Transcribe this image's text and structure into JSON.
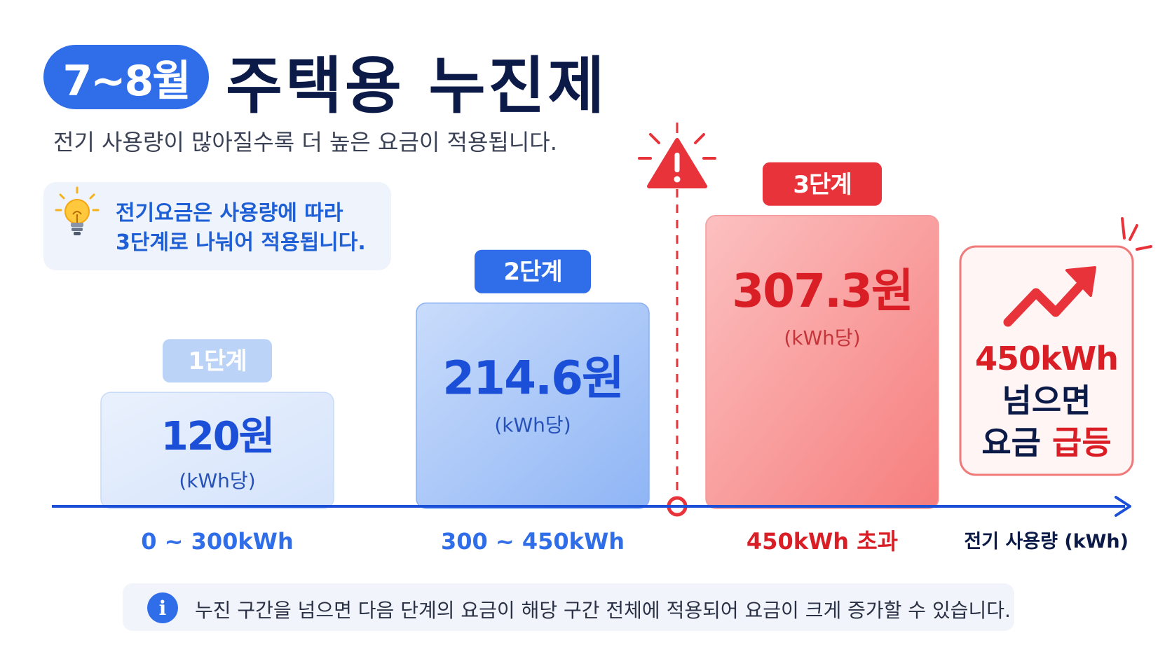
{
  "header": {
    "period": "7~8월",
    "title": "주택용 누진제",
    "subtitle": "전기 사용량이 많아질수록 더 높은 요금이 적용됩니다."
  },
  "tip": {
    "line1": "전기요금은 사용량에 따라",
    "line2": "3단계로 나눠어 적용됩니다."
  },
  "chart_data": {
    "type": "bar",
    "title": "",
    "xlabel": "전기 사용량 (kWh)",
    "ylabel": "",
    "categories": [
      "0 ~ 300kWh",
      "300 ~ 450kWh",
      "450kWh 초과"
    ],
    "tiers": [
      "1단계",
      "2단계",
      "3단계"
    ],
    "values": [
      120,
      214.6,
      307.3
    ],
    "value_labels": [
      "120원",
      "214.6원",
      "307.3원"
    ],
    "unit_label": "(kWh당)",
    "threshold_kwh": 450,
    "colors": {
      "tier1": "#dce8fb",
      "tier2": "#a8c6f7",
      "tier3": "#f98c8c",
      "blue_accent": "#2f6ee8",
      "red_accent": "#e8333a",
      "axis": "#1c4fd8"
    }
  },
  "callout": {
    "line1": "450kWh",
    "line2": "넘으면",
    "line3_prefix": "요금",
    "line3_highlight": "급등"
  },
  "note": {
    "icon": "info-icon",
    "text": "누진 구간을 넘으면 다음 단계의 요금이 해당 구간 전체에 적용되어 요금이 크게 증가할 수 있습니다."
  }
}
